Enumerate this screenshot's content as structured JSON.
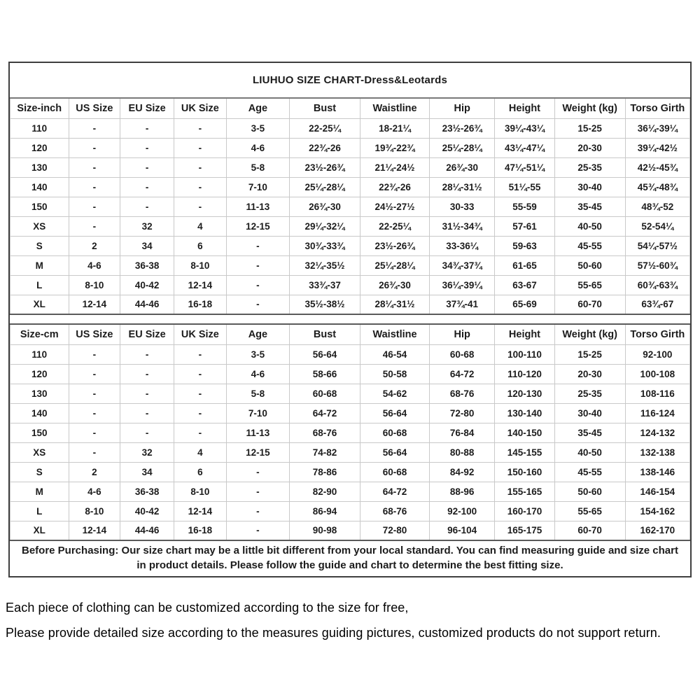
{
  "title": "LIUHUO SIZE CHART-Dress&Leotards",
  "colors": {
    "border_dark": "#3f3f3f",
    "border_light": "#c9c9c9",
    "text": "#1c1c1c"
  },
  "inch_table": {
    "headers": [
      "Size-inch",
      "US Size",
      "EU Size",
      "UK Size",
      "Age",
      "Bust",
      "Waistline",
      "Hip",
      "Height",
      "Weight (kg)",
      "Torso Girth"
    ],
    "rows": [
      [
        "110",
        "-",
        "-",
        "-",
        "3-5",
        "22-25¼",
        "18-21¼",
        "23½-26¾",
        "39¼-43¼",
        "15-25",
        "36¼-39¼"
      ],
      [
        "120",
        "-",
        "-",
        "-",
        "4-6",
        "22¾-26",
        "19¾-22¾",
        "25¼-28¼",
        "43¼-47¼",
        "20-30",
        "39¼-42½"
      ],
      [
        "130",
        "-",
        "-",
        "-",
        "5-8",
        "23½-26¾",
        "21¼-24½",
        "26¾-30",
        "47¼-51¼",
        "25-35",
        "42½-45¾"
      ],
      [
        "140",
        "-",
        "-",
        "-",
        "7-10",
        "25¼-28¼",
        "22¾-26",
        "28¼-31½",
        "51¼-55",
        "30-40",
        "45¾-48¾"
      ],
      [
        "150",
        "-",
        "-",
        "-",
        "11-13",
        "26¾-30",
        "24½-27½",
        "30-33",
        "55-59",
        "35-45",
        "48¾-52"
      ],
      [
        "XS",
        "-",
        "32",
        "4",
        "12-15",
        "29¼-32¼",
        "22-25¼",
        "31½-34¾",
        "57-61",
        "40-50",
        "52-54¼"
      ],
      [
        "S",
        "2",
        "34",
        "6",
        "-",
        "30¾-33¾",
        "23½-26¾",
        "33-36¼",
        "59-63",
        "45-55",
        "54¼-57½"
      ],
      [
        "M",
        "4-6",
        "36-38",
        "8-10",
        "-",
        "32¼-35½",
        "25¼-28¼",
        "34¾-37¾",
        "61-65",
        "50-60",
        "57½-60¾"
      ],
      [
        "L",
        "8-10",
        "40-42",
        "12-14",
        "-",
        "33¾-37",
        "26¾-30",
        "36¼-39¼",
        "63-67",
        "55-65",
        "60¾-63¾"
      ],
      [
        "XL",
        "12-14",
        "44-46",
        "16-18",
        "-",
        "35½-38½",
        "28¼-31½",
        "37¾-41",
        "65-69",
        "60-70",
        "63¾-67"
      ]
    ]
  },
  "cm_table": {
    "headers": [
      "Size-cm",
      "US Size",
      "EU Size",
      "UK Size",
      "Age",
      "Bust",
      "Waistline",
      "Hip",
      "Height",
      "Weight (kg)",
      "Torso Girth"
    ],
    "rows": [
      [
        "110",
        "-",
        "-",
        "-",
        "3-5",
        "56-64",
        "46-54",
        "60-68",
        "100-110",
        "15-25",
        "92-100"
      ],
      [
        "120",
        "-",
        "-",
        "-",
        "4-6",
        "58-66",
        "50-58",
        "64-72",
        "110-120",
        "20-30",
        "100-108"
      ],
      [
        "130",
        "-",
        "-",
        "-",
        "5-8",
        "60-68",
        "54-62",
        "68-76",
        "120-130",
        "25-35",
        "108-116"
      ],
      [
        "140",
        "-",
        "-",
        "-",
        "7-10",
        "64-72",
        "56-64",
        "72-80",
        "130-140",
        "30-40",
        "116-124"
      ],
      [
        "150",
        "-",
        "-",
        "-",
        "11-13",
        "68-76",
        "60-68",
        "76-84",
        "140-150",
        "35-45",
        "124-132"
      ],
      [
        "XS",
        "-",
        "32",
        "4",
        "12-15",
        "74-82",
        "56-64",
        "80-88",
        "145-155",
        "40-50",
        "132-138"
      ],
      [
        "S",
        "2",
        "34",
        "6",
        "-",
        "78-86",
        "60-68",
        "84-92",
        "150-160",
        "45-55",
        "138-146"
      ],
      [
        "M",
        "4-6",
        "36-38",
        "8-10",
        "-",
        "82-90",
        "64-72",
        "88-96",
        "155-165",
        "50-60",
        "146-154"
      ],
      [
        "L",
        "8-10",
        "40-42",
        "12-14",
        "-",
        "86-94",
        "68-76",
        "92-100",
        "160-170",
        "55-65",
        "154-162"
      ],
      [
        "XL",
        "12-14",
        "44-46",
        "16-18",
        "-",
        "90-98",
        "72-80",
        "96-104",
        "165-175",
        "60-70",
        "162-170"
      ]
    ]
  },
  "footnote": "Before Purchasing: Our size chart may be a little bit different from your local standard. You can find measuring guide and size chart in product details. Please follow the guide and chart to determine the best fitting size.",
  "notes": [
    "Each piece of clothing can be customized according to the size for free,",
    "Please provide detailed size according to the measures guiding pictures, customized products do not support return."
  ]
}
